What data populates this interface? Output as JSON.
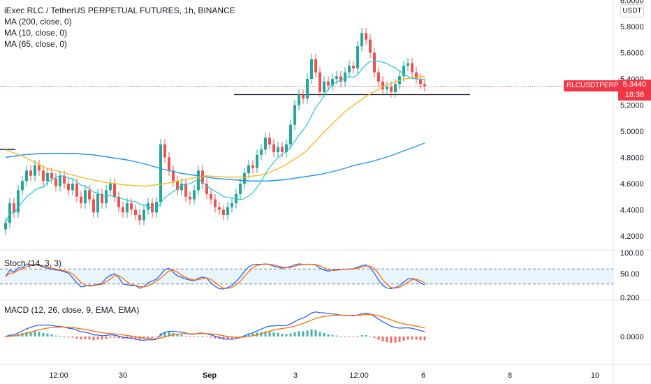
{
  "header": {
    "title": "iExec RLC / TetherUS PERPETUAL FUTURES, 1h, BINANCE",
    "indicators": [
      "MA (200, close, 0)",
      "MA (10, close, 0)",
      "MA (65, close, 0)"
    ]
  },
  "price_axis": {
    "unit": "USDT",
    "symbol_tag": "RLCUSDTPERP",
    "last_price": "5.3440",
    "countdown": "18:38"
  },
  "stoch": {
    "label": "Stoch (14, 3, 3)"
  },
  "macd": {
    "label": "MACD (12, 26, close, 9, EMA, EMA)"
  },
  "colors": {
    "up": "#26a69a",
    "down": "#ef5350",
    "ma200": "#2196f3",
    "ma10": "#26c6da",
    "ma65": "#f7b924",
    "stoch_k": "#2962ff",
    "stoch_d": "#ff6d00",
    "macd": "#2962ff",
    "signal": "#ff6d00",
    "last_tag": "#f23645"
  },
  "chart_data": {
    "type": "candlestick",
    "x_tick_labels": [
      "12:00",
      "30",
      "Sep",
      "3",
      "12:00",
      "6",
      "8",
      "10"
    ],
    "price_ticks": [
      "6.0000",
      "5.8000",
      "5.6000",
      "5.4000",
      "5.2000",
      "5.0000",
      "4.8000",
      "4.6000",
      "4.4000",
      "4.2000"
    ],
    "ylim": [
      4.1,
      6.0
    ],
    "stoch_ticks": [
      "100.00",
      "50.00",
      "0.200"
    ],
    "stoch_bands": [
      80,
      20
    ],
    "macd_ticks": [
      "0.0000"
    ],
    "last_price": 5.344,
    "horizontal_level": 5.28,
    "close": [
      4.3,
      4.45,
      4.38,
      4.55,
      4.62,
      4.7,
      4.66,
      4.74,
      4.7,
      4.62,
      4.68,
      4.64,
      4.58,
      4.66,
      4.6,
      4.55,
      4.6,
      4.5,
      4.45,
      4.55,
      4.48,
      4.38,
      4.52,
      4.45,
      4.55,
      4.6,
      4.5,
      4.42,
      4.38,
      4.45,
      4.4,
      4.36,
      4.32,
      4.4,
      4.45,
      4.38,
      4.46,
      4.9,
      4.8,
      4.7,
      4.62,
      4.55,
      4.6,
      4.5,
      4.48,
      4.55,
      4.7,
      4.6,
      4.52,
      4.48,
      4.42,
      4.4,
      4.36,
      4.42,
      4.45,
      4.52,
      4.6,
      4.68,
      4.74,
      4.72,
      4.82,
      4.86,
      4.95,
      4.9,
      4.84,
      4.88,
      4.84,
      4.9,
      5.05,
      5.2,
      5.28,
      5.25,
      5.4,
      5.55,
      5.45,
      5.3,
      5.38,
      5.35,
      5.4,
      5.42,
      5.38,
      5.45,
      5.5,
      5.48,
      5.65,
      5.75,
      5.7,
      5.6,
      5.45,
      5.38,
      5.32,
      5.34,
      5.3,
      5.36,
      5.42,
      5.5,
      5.52,
      5.45,
      5.4,
      5.36,
      5.344
    ],
    "ma200": [
      4.8,
      4.82,
      4.83,
      4.83,
      4.83,
      4.82,
      4.8,
      4.78,
      4.75,
      4.71,
      4.68,
      4.66,
      4.64,
      4.63,
      4.62,
      4.62,
      4.63,
      4.65,
      4.67,
      4.7,
      4.74,
      4.77,
      4.81,
      4.86,
      4.91
    ],
    "ma65": [
      4.86,
      4.8,
      4.72,
      4.68,
      4.64,
      4.61,
      4.59,
      4.58,
      4.6,
      4.63,
      4.66,
      4.65,
      4.65,
      4.67,
      4.74,
      4.84,
      5.0,
      5.15,
      5.26,
      5.35,
      5.4,
      5.42
    ]
  }
}
